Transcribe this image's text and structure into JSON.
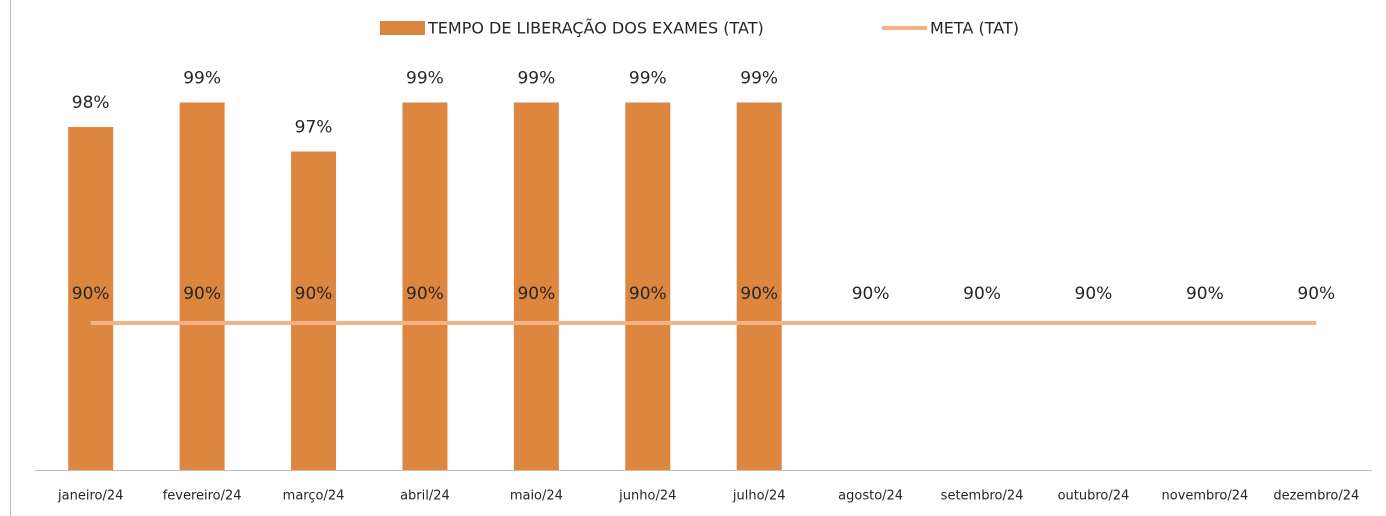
{
  "chart_data": {
    "type": "bar",
    "categories": [
      "janeiro/24",
      "fevereiro/24",
      "março/24",
      "abril/24",
      "maio/24",
      "junho/24",
      "julho/24",
      "agosto/24",
      "setembro/24",
      "outubro/24",
      "novembro/24",
      "dezembro/24"
    ],
    "series": [
      {
        "name": "TEMPO DE LIBERAÇÃO DOS EXAMES (TAT)",
        "type": "bar",
        "color": "#dd863f",
        "values": [
          98,
          99,
          97,
          99,
          99,
          99,
          99,
          null,
          null,
          null,
          null,
          null
        ],
        "value_labels": [
          "98%",
          "99%",
          "97%",
          "99%",
          "99%",
          "99%",
          "99%",
          null,
          null,
          null,
          null,
          null
        ]
      },
      {
        "name": "META (TAT)",
        "type": "line",
        "color": "#f4b183",
        "values": [
          90,
          90,
          90,
          90,
          90,
          90,
          90,
          90,
          90,
          90,
          90,
          90
        ],
        "value_labels": [
          "90%",
          "90%",
          "90%",
          "90%",
          "90%",
          "90%",
          "90%",
          "90%",
          "90%",
          "90%",
          "90%",
          "90%"
        ]
      }
    ],
    "ylim": [
      84,
      100
    ],
    "legend": "top"
  }
}
